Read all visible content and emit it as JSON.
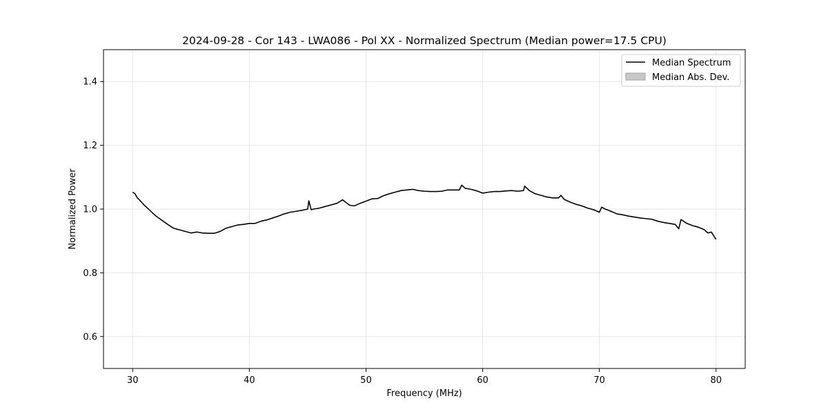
{
  "chart_data": {
    "type": "line",
    "title": "2024-09-28 - Cor 143 - LWA086 - Pol XX - Normalized Spectrum (Median power=17.5 CPU)",
    "xlabel": "Frequency (MHz)",
    "ylabel": "Normalized Power",
    "xlim": [
      27.5,
      82.5
    ],
    "ylim": [
      0.5,
      1.5
    ],
    "xticks": [
      30,
      40,
      50,
      60,
      70,
      80
    ],
    "yticks": [
      0.6,
      0.8,
      1.0,
      1.2,
      1.4
    ],
    "xtick_labels": [
      "30",
      "40",
      "50",
      "60",
      "70",
      "80"
    ],
    "ytick_labels": [
      "0.6",
      "0.8",
      "1.0",
      "1.2",
      "1.4"
    ],
    "grid": true,
    "legend_position": "top-right",
    "legend": [
      "Median Spectrum",
      "Median Abs. Dev."
    ],
    "series": [
      {
        "name": "Median Spectrum",
        "color": "#000000",
        "x": [
          30.0,
          30.2,
          30.4,
          30.6,
          30.8,
          31.0,
          31.5,
          32.0,
          32.5,
          33.0,
          33.5,
          34.0,
          34.5,
          35.0,
          35.5,
          36.0,
          36.5,
          37.0,
          37.5,
          38.0,
          38.5,
          39.0,
          39.5,
          40.0,
          40.5,
          41.0,
          41.5,
          42.0,
          42.5,
          43.0,
          43.5,
          44.0,
          44.5,
          45.0,
          45.1,
          45.3,
          45.5,
          46.0,
          46.5,
          47.0,
          47.5,
          48.0,
          48.3,
          48.6,
          49.0,
          49.5,
          50.0,
          50.5,
          51.0,
          51.5,
          52.0,
          52.5,
          53.0,
          53.5,
          54.0,
          54.5,
          55.0,
          55.5,
          56.0,
          56.5,
          57.0,
          57.5,
          58.0,
          58.2,
          58.5,
          59.0,
          59.5,
          60.0,
          60.5,
          61.0,
          61.5,
          62.0,
          62.5,
          63.0,
          63.5,
          63.6,
          64.0,
          64.5,
          65.0,
          65.5,
          66.0,
          66.5,
          66.7,
          67.0,
          67.5,
          68.0,
          68.5,
          69.0,
          69.5,
          70.0,
          70.2,
          70.5,
          71.0,
          71.5,
          72.0,
          72.5,
          73.0,
          73.5,
          74.0,
          74.5,
          75.0,
          75.5,
          76.0,
          76.5,
          76.8,
          77.0,
          77.5,
          78.0,
          78.5,
          79.0,
          79.3,
          79.6,
          80.0
        ],
        "values": [
          1.053,
          1.048,
          1.035,
          1.028,
          1.02,
          1.012,
          0.995,
          0.978,
          0.965,
          0.952,
          0.94,
          0.935,
          0.93,
          0.925,
          0.928,
          0.925,
          0.924,
          0.924,
          0.93,
          0.94,
          0.945,
          0.95,
          0.952,
          0.955,
          0.955,
          0.962,
          0.966,
          0.972,
          0.978,
          0.985,
          0.99,
          0.993,
          0.996,
          1.0,
          1.026,
          0.998,
          1.0,
          1.003,
          1.008,
          1.013,
          1.018,
          1.029,
          1.02,
          1.012,
          1.01,
          1.018,
          1.025,
          1.032,
          1.033,
          1.042,
          1.048,
          1.053,
          1.058,
          1.06,
          1.062,
          1.058,
          1.056,
          1.055,
          1.055,
          1.056,
          1.06,
          1.06,
          1.06,
          1.075,
          1.065,
          1.062,
          1.057,
          1.05,
          1.053,
          1.055,
          1.055,
          1.057,
          1.058,
          1.056,
          1.058,
          1.072,
          1.058,
          1.048,
          1.043,
          1.038,
          1.035,
          1.035,
          1.043,
          1.03,
          1.022,
          1.015,
          1.01,
          1.003,
          0.998,
          0.99,
          1.006,
          1.0,
          0.993,
          0.985,
          0.982,
          0.978,
          0.975,
          0.972,
          0.97,
          0.968,
          0.962,
          0.958,
          0.955,
          0.952,
          0.938,
          0.967,
          0.955,
          0.948,
          0.943,
          0.935,
          0.925,
          0.928,
          0.905
        ]
      }
    ]
  }
}
